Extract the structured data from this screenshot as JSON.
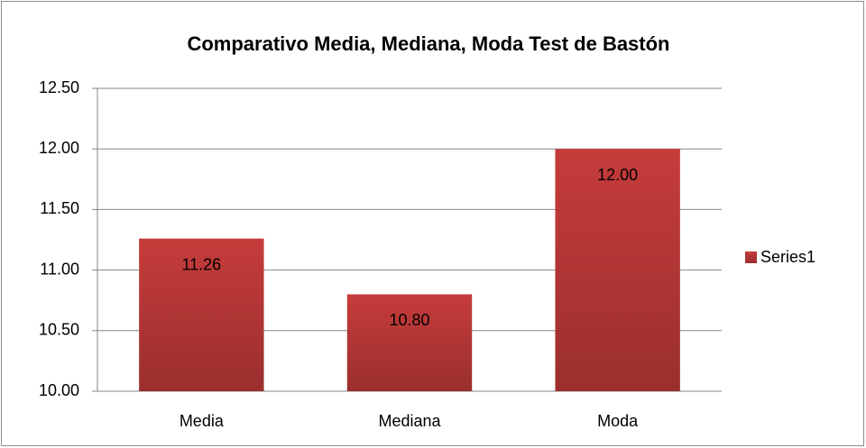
{
  "chart_data": {
    "type": "bar",
    "title": "Comparativo Media, Mediana, Moda Test de Bastón",
    "categories": [
      "Media",
      "Mediana",
      "Moda"
    ],
    "series": [
      {
        "name": "Series1",
        "color": "#c63c3b",
        "values": [
          11.26,
          10.8,
          12
        ],
        "value_labels": [
          "11.26",
          "10.80",
          "12.00"
        ]
      }
    ],
    "ylim": [
      10,
      12.5
    ],
    "yticks": [
      {
        "value": 10,
        "label": "10.00"
      },
      {
        "value": 10.5,
        "label": "10.50"
      },
      {
        "value": 11,
        "label": "11.00"
      },
      {
        "value": 11.5,
        "label": "11.50"
      },
      {
        "value": 12,
        "label": "12.00"
      },
      {
        "value": 12.5,
        "label": "12.50"
      }
    ],
    "grid": true,
    "legend": "right"
  }
}
